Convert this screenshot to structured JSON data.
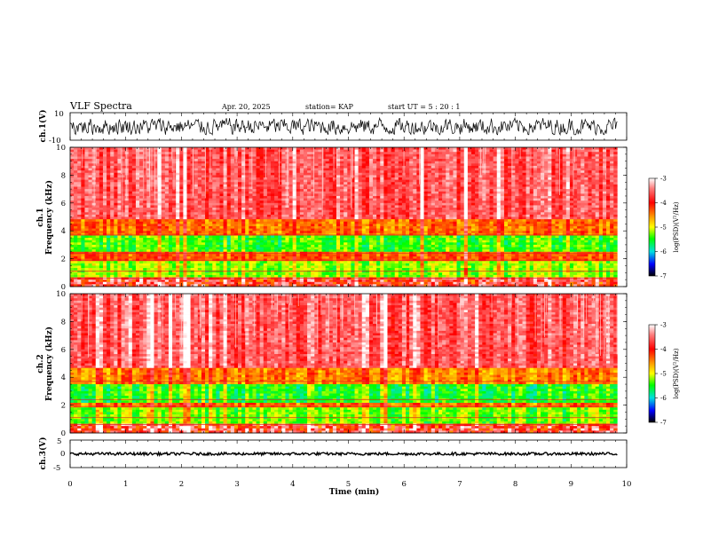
{
  "header": {
    "title": "VLF Spectra",
    "date": "Apr. 20, 2025",
    "station": "station= KAP",
    "start_ut": "start  UT =   5  : 20 : 1"
  },
  "chart_data": [
    {
      "type": "line",
      "name": "ch1-waveform",
      "ylabel": "ch.1(V)",
      "ylim": [
        -10,
        10
      ],
      "yticks": [
        "10",
        "-10"
      ],
      "xlim": [
        0,
        10
      ],
      "signal_range": [
        -6,
        6
      ]
    },
    {
      "type": "heatmap",
      "name": "ch1-spectrogram",
      "ylabel": "ch.1\nFrequency  (kHz)",
      "ylabel_ch": "ch.1",
      "ylabel_freq": "Frequency  (kHz)",
      "ylim": [
        0,
        10
      ],
      "yticks": [
        "0",
        "2",
        "4",
        "6",
        "8",
        "10"
      ],
      "xlim": [
        0,
        9.83
      ],
      "bands_khz": [
        {
          "from": 0.0,
          "to": 0.6,
          "level": "mixed"
        },
        {
          "from": 0.6,
          "to": 1.9,
          "level": -5.2
        },
        {
          "from": 1.9,
          "to": 2.5,
          "level": -4.3
        },
        {
          "from": 2.5,
          "to": 3.6,
          "level": -5.4
        },
        {
          "from": 3.6,
          "to": 4.8,
          "level": -4.4
        },
        {
          "from": 4.8,
          "to": 10.0,
          "level": -3.6
        }
      ],
      "colorbar": {
        "label": "log(PSD)(V²/Hz)",
        "range": [
          -7,
          -3
        ],
        "ticks": [
          "-3",
          "-4",
          "-5",
          "-6",
          "-7"
        ]
      }
    },
    {
      "type": "heatmap",
      "name": "ch2-spectrogram",
      "ylabel_ch": "ch.2",
      "ylabel_freq": "Frequency  (kHz)",
      "ylim": [
        0,
        10
      ],
      "yticks": [
        "0",
        "2",
        "4",
        "6",
        "8",
        "10"
      ],
      "xlim": [
        0,
        9.83
      ],
      "bands_khz": [
        {
          "from": 0.0,
          "to": 0.6,
          "level": "mixed"
        },
        {
          "from": 0.6,
          "to": 1.8,
          "level": -5.3
        },
        {
          "from": 1.8,
          "to": 2.2,
          "level": -4.4
        },
        {
          "from": 2.2,
          "to": 3.5,
          "level": -5.5
        },
        {
          "from": 3.5,
          "to": 4.7,
          "level": -4.5
        },
        {
          "from": 4.7,
          "to": 10.0,
          "level": -3.6
        }
      ],
      "colorbar": {
        "label": "log(PSD)(V²/Hz)",
        "range": [
          -7,
          -3
        ],
        "ticks": [
          "-3",
          "-4",
          "-5",
          "-6",
          "-7"
        ]
      }
    },
    {
      "type": "line",
      "name": "ch3-waveform",
      "ylabel": "ch.3(V)",
      "ylim": [
        -5,
        5
      ],
      "yticks": [
        "5",
        "0",
        "-5"
      ],
      "xlim": [
        0,
        10
      ],
      "signal_range": [
        -0.5,
        0.5
      ],
      "signal_center": 0
    }
  ],
  "xaxis": {
    "label": "Time  (min)",
    "range": [
      0,
      10
    ],
    "ticks": [
      "0",
      "1",
      "2",
      "3",
      "4",
      "5",
      "6",
      "7",
      "8",
      "9",
      "10"
    ]
  },
  "colors": {
    "axes": "#000000",
    "trace": "#000000"
  }
}
